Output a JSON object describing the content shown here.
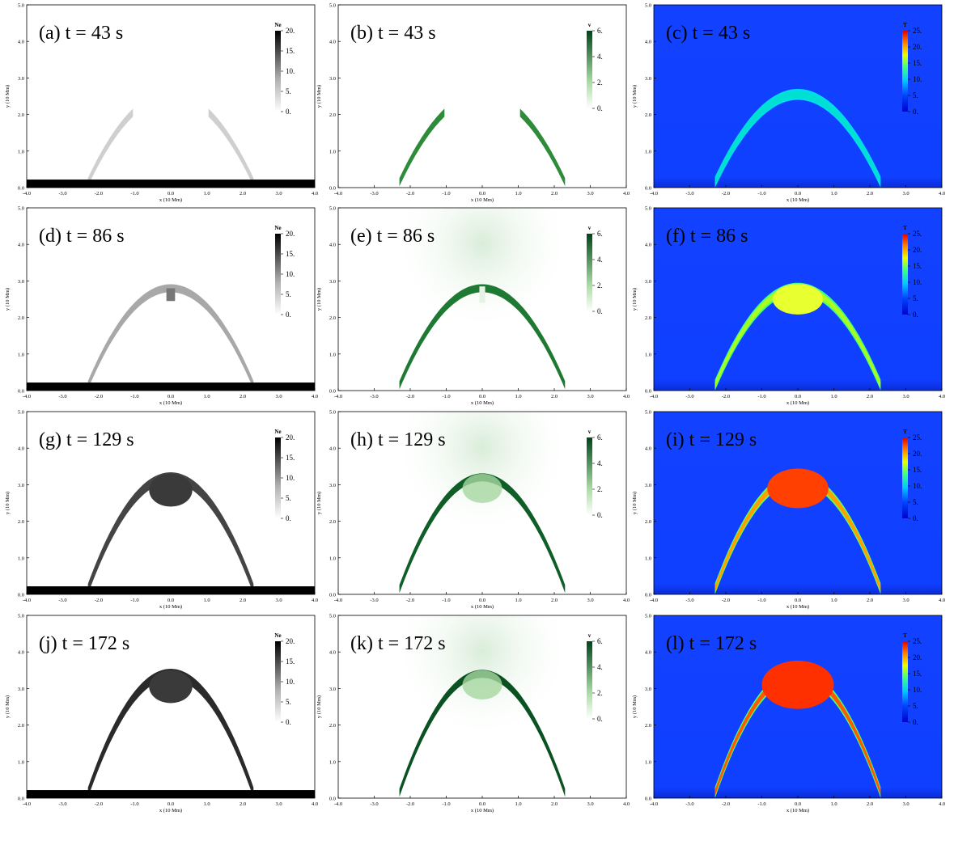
{
  "chart_data": {
    "type": "heatmap",
    "description_layout": "4x3 grid of simulation snapshots",
    "times_s": [
      43,
      86,
      129,
      172
    ],
    "panels": [
      {
        "label": "(a) t = 43 s",
        "quantity": "Ne",
        "colorbar_ticks": [
          "20.",
          "15.",
          "10.",
          "5.",
          "0."
        ]
      },
      {
        "label": "(b) t = 43 s",
        "quantity": "v",
        "colorbar_ticks": [
          "6.",
          "4.",
          "2.",
          "0."
        ]
      },
      {
        "label": "(c) t = 43 s",
        "quantity": "T",
        "colorbar_ticks": [
          "25.",
          "20.",
          "15.",
          "10.",
          "5.",
          "0."
        ]
      },
      {
        "label": "(d) t = 86 s",
        "quantity": "Ne",
        "colorbar_ticks": [
          "20.",
          "15.",
          "10.",
          "5.",
          "0."
        ]
      },
      {
        "label": "(e) t = 86 s",
        "quantity": "v",
        "colorbar_ticks": [
          "6.",
          "4.",
          "2.",
          "0."
        ]
      },
      {
        "label": "(f) t = 86 s",
        "quantity": "T",
        "colorbar_ticks": [
          "25.",
          "20.",
          "15.",
          "10.",
          "5.",
          "0."
        ]
      },
      {
        "label": "(g) t = 129 s",
        "quantity": "Ne",
        "colorbar_ticks": [
          "20.",
          "15.",
          "10.",
          "5.",
          "0."
        ]
      },
      {
        "label": "(h) t = 129 s",
        "quantity": "v",
        "colorbar_ticks": [
          "6.",
          "4.",
          "2.",
          "0."
        ]
      },
      {
        "label": "(i) t = 129 s",
        "quantity": "T",
        "colorbar_ticks": [
          "25.",
          "20.",
          "15.",
          "10.",
          "5.",
          "0."
        ]
      },
      {
        "label": "(j) t = 172 s",
        "quantity": "Ne",
        "colorbar_ticks": [
          "20.",
          "15.",
          "10.",
          "5.",
          "0."
        ]
      },
      {
        "label": "(k) t = 172 s",
        "quantity": "v",
        "colorbar_ticks": [
          "6.",
          "4.",
          "2.",
          "0."
        ]
      },
      {
        "label": "(l) t = 172 s",
        "quantity": "T",
        "colorbar_ticks": [
          "25.",
          "20.",
          "15.",
          "10.",
          "5.",
          "0."
        ]
      }
    ],
    "xlabel": "x (10 Mm)",
    "ylabel": "y (10 Mm)",
    "xlim": [
      -4.0,
      4.0
    ],
    "ylim": [
      0.0,
      5.0
    ],
    "xticks": [
      "-4.0",
      "-3.0",
      "-2.0",
      "-1.0",
      "0.0",
      "1.0",
      "2.0",
      "3.0",
      "4.0"
    ],
    "yticks": [
      "0.0",
      "1.0",
      "2.0",
      "3.0",
      "4.0",
      "5.0"
    ],
    "loop": {
      "footpoint_x": 2.3,
      "apex_y_by_time": [
        2.55,
        2.8,
        3.2,
        3.4
      ]
    },
    "colors": {
      "Ne": [
        "#ffffff",
        "#000000"
      ],
      "v": [
        "#ffffff",
        "#00441b"
      ],
      "T": [
        "#0000cc",
        "#0044ff",
        "#00c8ff",
        "#40ff80",
        "#e8ff00",
        "#ff8000",
        "#e00000"
      ],
      "T_background": "#1040ff"
    }
  }
}
